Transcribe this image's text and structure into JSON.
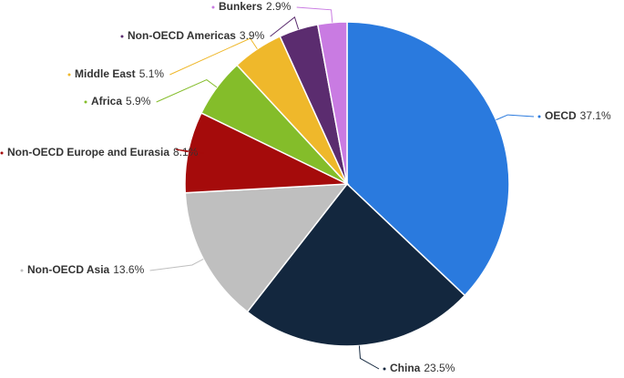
{
  "chart_data": {
    "type": "pie",
    "categories": [
      "OECD",
      "China",
      "Non-OECD Asia",
      "Non-OECD Europe and Eurasia",
      "Africa",
      "Middle East",
      "Non-OECD Americas",
      "Bunkers"
    ],
    "values": [
      37.1,
      23.5,
      13.6,
      8.1,
      5.9,
      5.1,
      3.9,
      2.9
    ],
    "value_labels": [
      "37.1%",
      "23.5%",
      "13.6%",
      "8.1%",
      "5.9%",
      "5.1%",
      "3.9%",
      "2.9%"
    ],
    "colors": [
      "#2a7ade",
      "#13273e",
      "#bfbfbf",
      "#a50b0b",
      "#84bd2a",
      "#efb82b",
      "#5b2c6f",
      "#c97be2"
    ]
  }
}
